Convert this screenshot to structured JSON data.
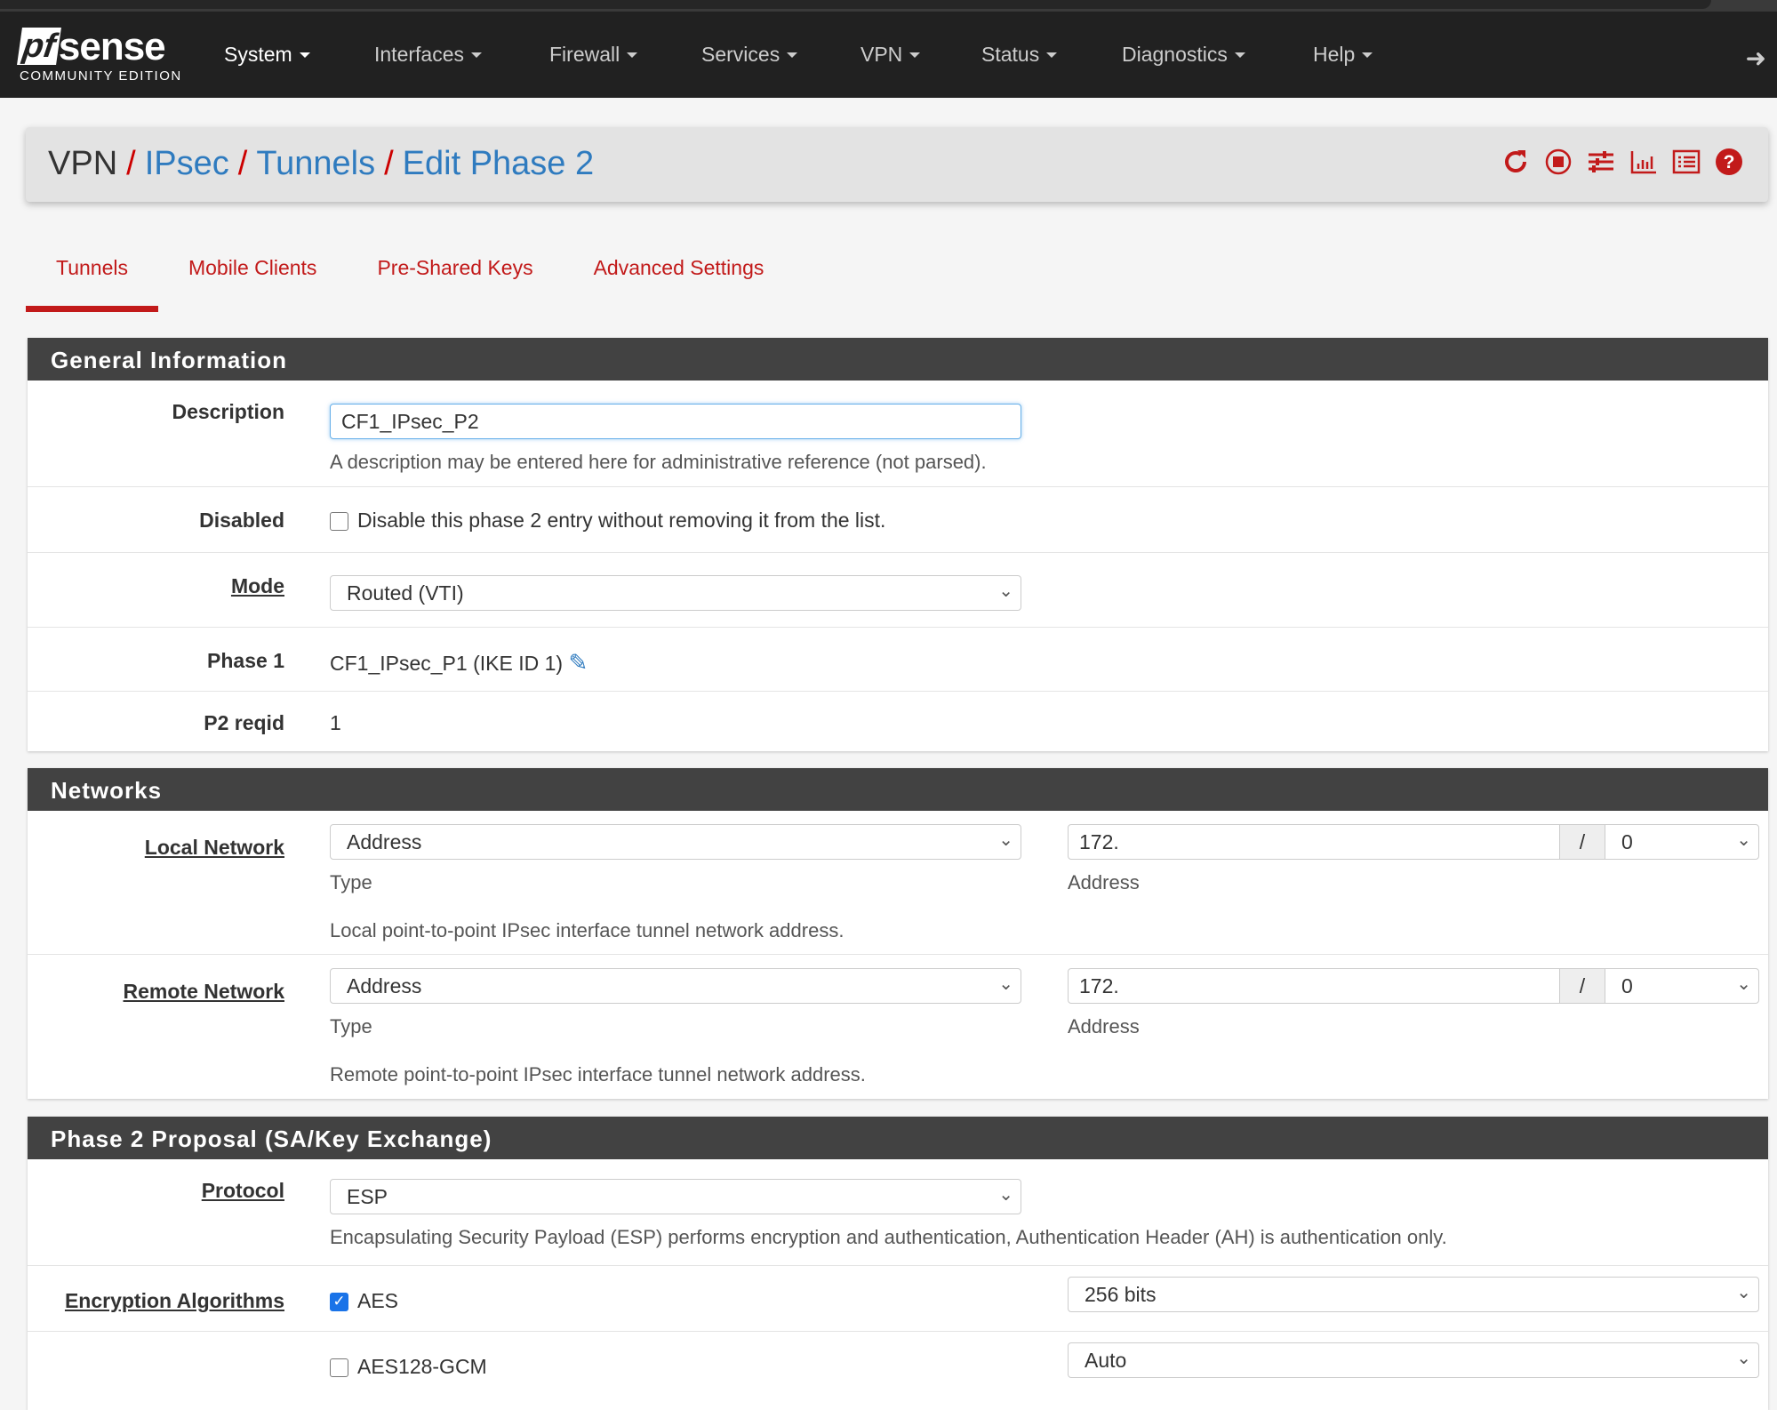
{
  "nav": {
    "logo_brand": "pfsense",
    "logo_edition": "COMMUNITY EDITION",
    "items": [
      "System",
      "Interfaces",
      "Firewall",
      "Services",
      "VPN",
      "Status",
      "Diagnostics",
      "Help"
    ]
  },
  "breadcrumb": {
    "root": "VPN",
    "items": [
      "IPsec",
      "Tunnels",
      "Edit Phase 2"
    ]
  },
  "header_icons": [
    "restart-icon",
    "stop-icon",
    "sliders-icon",
    "chart-icon",
    "list-icon",
    "help-icon"
  ],
  "tabs": [
    "Tunnels",
    "Mobile Clients",
    "Pre-Shared Keys",
    "Advanced Settings"
  ],
  "general": {
    "title": "General Information",
    "description": {
      "label": "Description",
      "value": "CF1_IPsec_P2",
      "help": "A description may be entered here for administrative reference (not parsed)."
    },
    "disabled": {
      "label": "Disabled",
      "checked": false,
      "text": "Disable this phase 2 entry without removing it from the list."
    },
    "mode": {
      "label": "Mode",
      "value": "Routed (VTI)"
    },
    "phase1": {
      "label": "Phase 1",
      "value": "CF1_IPsec_P1 (IKE ID 1)"
    },
    "reqid": {
      "label": "P2 reqid",
      "value": "1"
    }
  },
  "networks": {
    "title": "Networks",
    "local": {
      "label": "Local Network",
      "type": "Address",
      "type_label": "Type",
      "address": "172.",
      "slash": "/",
      "mask": "0",
      "address_label": "Address",
      "help": "Local point-to-point IPsec interface tunnel network address."
    },
    "remote": {
      "label": "Remote Network",
      "type": "Address",
      "type_label": "Type",
      "address": "172.",
      "slash": "/",
      "mask": "0",
      "address_label": "Address",
      "help": "Remote point-to-point IPsec interface tunnel network address."
    }
  },
  "proposal": {
    "title": "Phase 2 Proposal (SA/Key Exchange)",
    "protocol": {
      "label": "Protocol",
      "value": "ESP",
      "help": "Encapsulating Security Payload (ESP) performs encryption and authentication, Authentication Header (AH) is authentication only."
    },
    "enc_label": "Encryption Algorithms",
    "algos": [
      {
        "name": "AES",
        "checked": true,
        "keylen": "256 bits"
      },
      {
        "name": "AES128-GCM",
        "checked": false,
        "keylen": "Auto"
      }
    ]
  },
  "colors": {
    "accent": "#c21a1a",
    "link": "#2f7bbf",
    "navbar": "#212121",
    "section_header": "#424242"
  }
}
